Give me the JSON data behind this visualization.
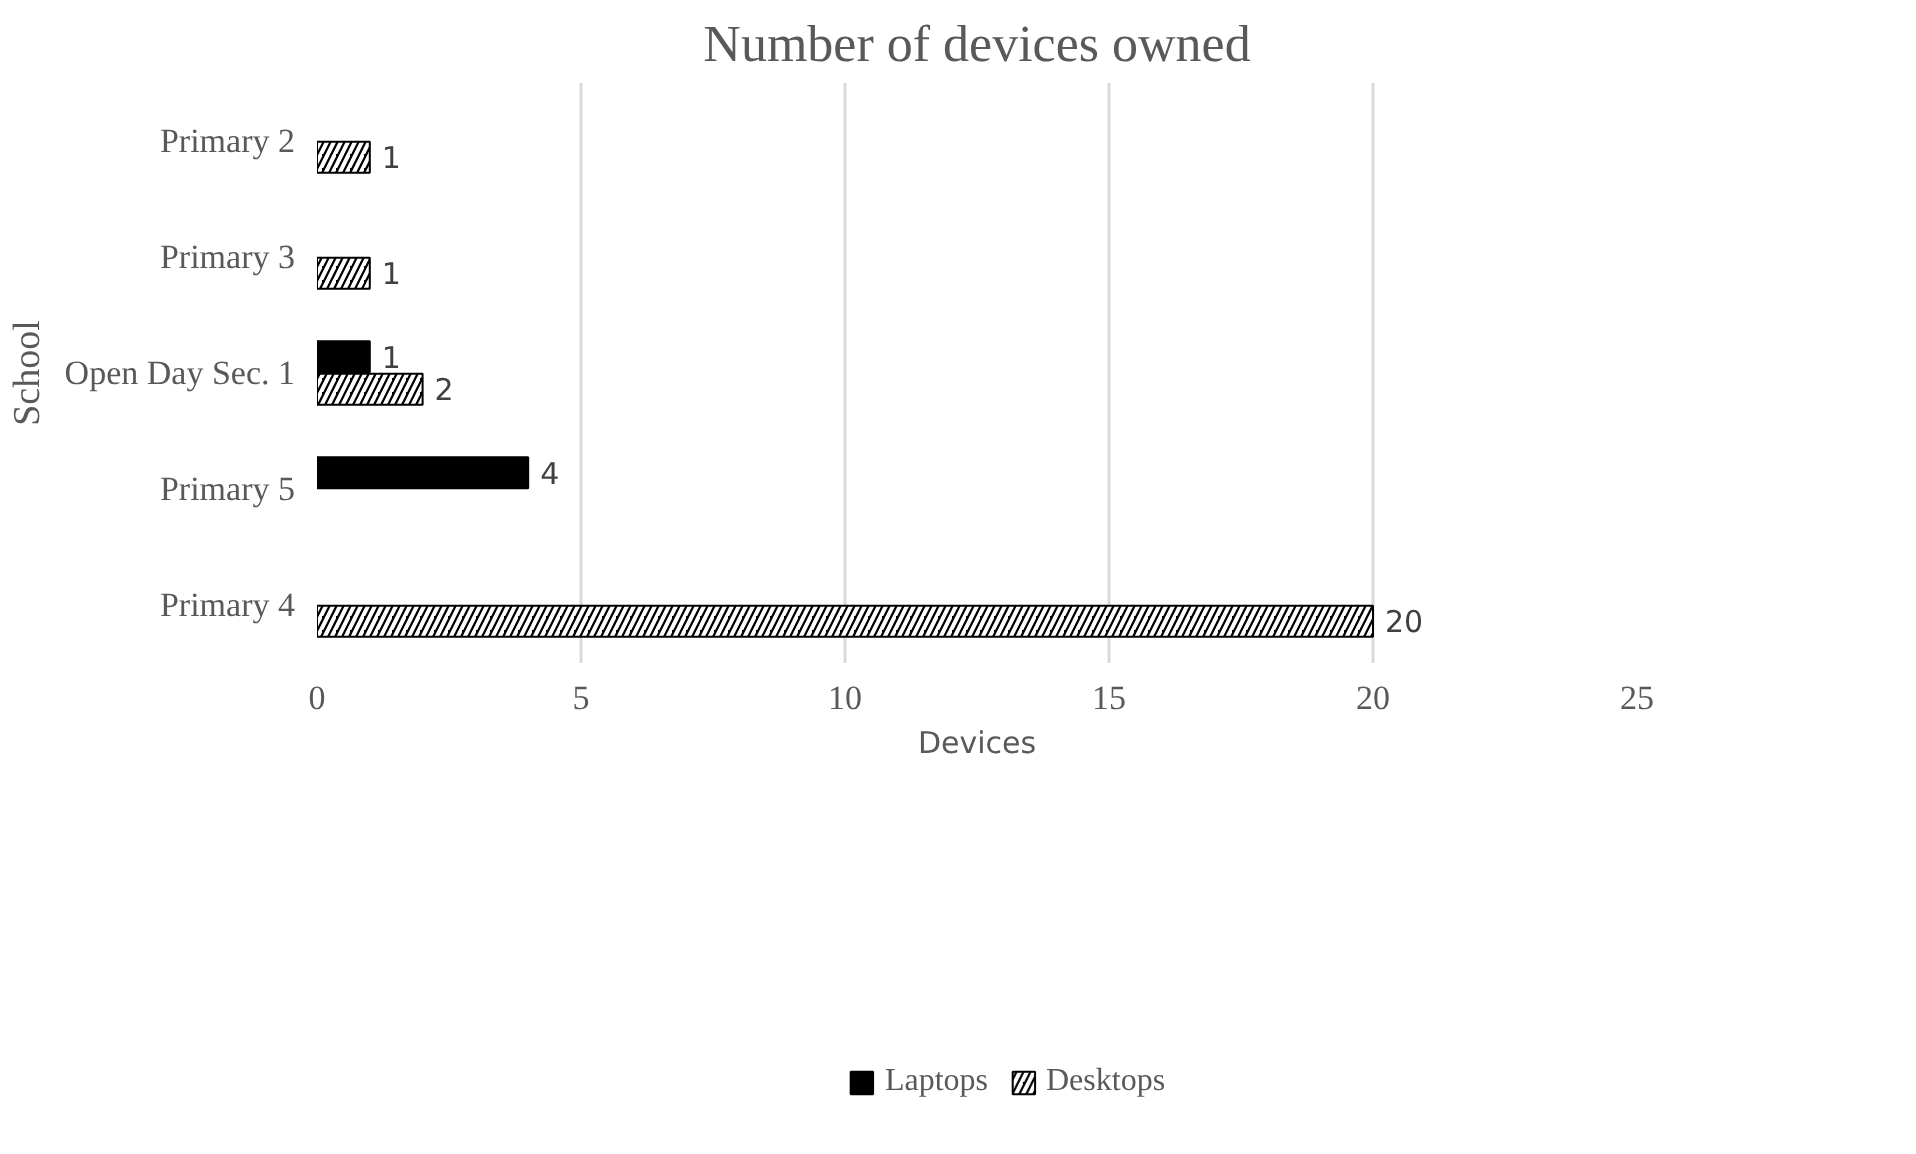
{
  "chart_data": {
    "type": "bar",
    "orientation": "horizontal",
    "title": "Number of devices owned",
    "xlabel": "Devices",
    "ylabel": "School",
    "categories": [
      "Primary 2",
      "Primary 3",
      "Open Day Sec. 1",
      "Primary 5",
      "Primary 4"
    ],
    "series": [
      {
        "name": "Laptops",
        "color": "#000000",
        "values": [
          null,
          null,
          1,
          4,
          null
        ]
      },
      {
        "name": "Desktops",
        "color": "#000000",
        "values": [
          1,
          1,
          2,
          null,
          20
        ]
      }
    ],
    "xlim": [
      0,
      25
    ],
    "xticks": [
      0,
      5,
      10,
      15,
      20,
      25
    ],
    "grid": "x",
    "legend": "bottom",
    "data_labels": true
  }
}
